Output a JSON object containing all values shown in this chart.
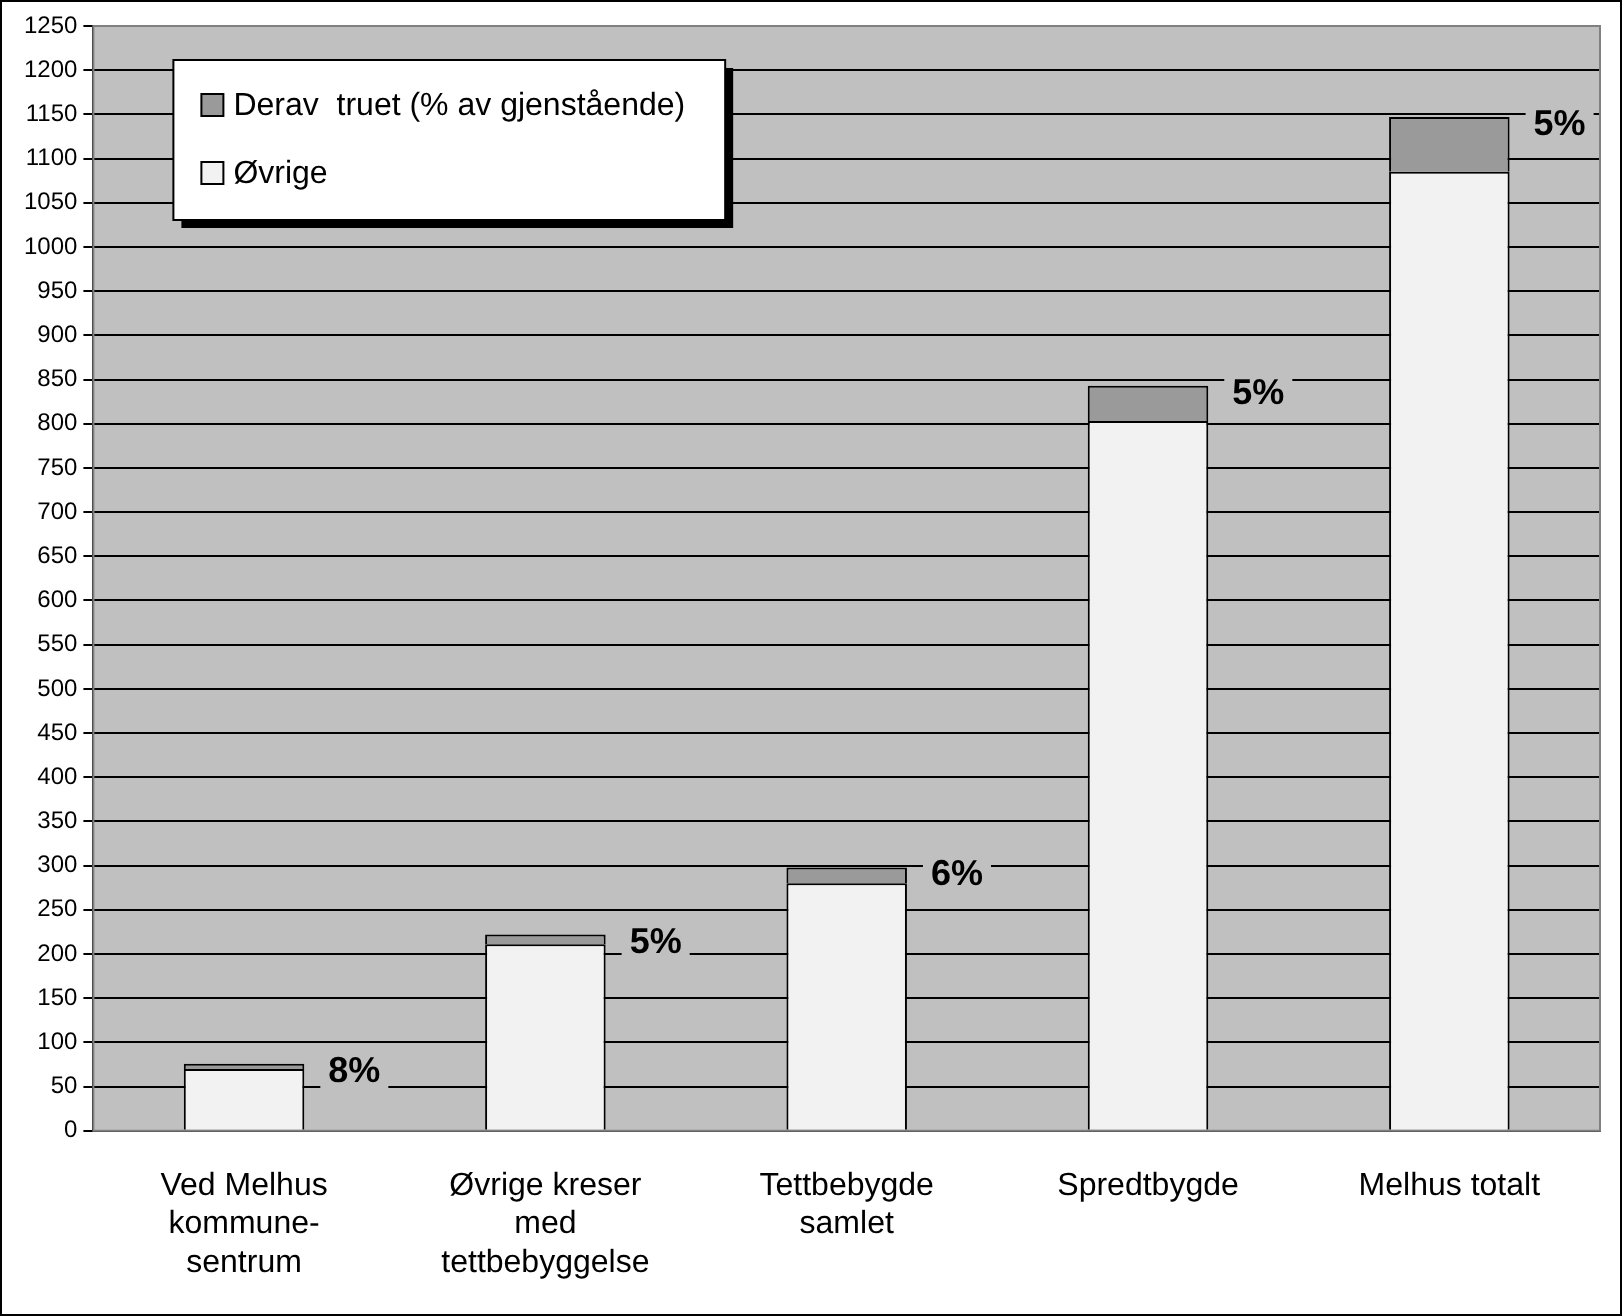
{
  "chart_data": {
    "type": "bar",
    "stacked": true,
    "categories": [
      "Ved Melhus kommune-sentrum",
      "Øvrige kreser med tettbebyggelse",
      "Tettbebygde samlet",
      "Spredtbygde",
      "Melhus totalt"
    ],
    "series": [
      {
        "name": "Øvrige",
        "color": "#f2f2f2",
        "values": [
          70,
          211,
          280,
          803,
          1085
        ]
      },
      {
        "name": "Derav  truet (% av gjenstående)",
        "color": "#9a9a9a",
        "values": [
          6,
          11,
          18,
          40,
          62
        ]
      }
    ],
    "annotations": [
      {
        "text": "8%",
        "x": "Ved Melhus kommune-sentrum",
        "y": 76
      },
      {
        "text": "5%",
        "x": "Øvrige kreser med tettbebyggelse",
        "y": 222
      },
      {
        "text": "6%",
        "x": "Tettbebygde samlet",
        "y": 298
      },
      {
        "text": "5%",
        "x": "Spredtbygde",
        "y": 843
      },
      {
        "text": "5%",
        "x": "Melhus totalt",
        "y": 1147
      }
    ],
    "ylim": [
      0,
      1250
    ],
    "yticks": [
      0,
      50,
      100,
      150,
      200,
      250,
      300,
      350,
      400,
      450,
      500,
      550,
      600,
      650,
      700,
      750,
      800,
      850,
      900,
      950,
      1000,
      1050,
      1100,
      1150,
      1200,
      1250
    ],
    "grid": "y",
    "legend": "top left"
  }
}
